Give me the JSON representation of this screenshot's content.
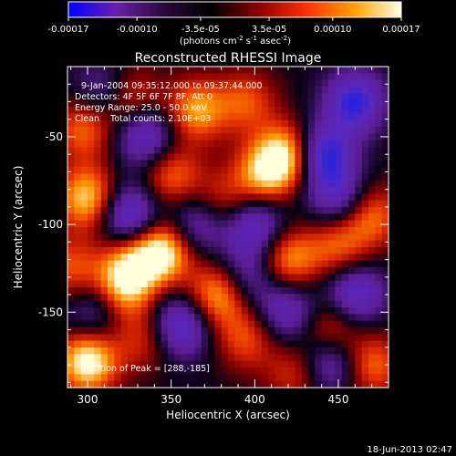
{
  "colorbar": {
    "tick_labels": [
      "-0.00017",
      "-0.00010",
      "-3.5e-05",
      "3.5e-05",
      "0.00010",
      "0.00017"
    ],
    "tick_values": [
      -0.00017,
      -0.0001,
      -3.5e-05,
      3.5e-05,
      0.0001,
      0.00017
    ],
    "range": [
      -0.00017,
      0.00017
    ],
    "units_label": "(photons cm",
    "units_sup1": "-2",
    "units_mid": " s",
    "units_sup2": "-1",
    "units_tail": " asec",
    "units_sup3": "-2",
    "units_close": ")",
    "colors": [
      "#0000ff",
      "#6a1fb0",
      "#2a0a3a",
      "#000000",
      "#8a0000",
      "#ff3000",
      "#ffa000",
      "#ffffe0"
    ]
  },
  "chart_data": {
    "type": "heatmap",
    "title": "Reconstructed RHESSI Image",
    "xlabel": "Heliocentric X (arcsec)",
    "ylabel": "Heliocentric Y (arcsec)",
    "xlim": [
      288,
      480
    ],
    "ylim": [
      -193,
      -10
    ],
    "xticks": [
      300,
      350,
      400,
      450
    ],
    "yticks": [
      -50,
      -100,
      -150
    ],
    "info_lines": [
      "9-Jan-2004 09:35:12.000 to 09:37:44.000",
      "Detectors: 4F 5F 6F 7F 8F, Att 0",
      "Energy Range: 25.0 - 50.0 keV",
      "Clean    Total counts: 2.10E+03"
    ],
    "peak_label": "Position of Peak = [288,-185]",
    "peak_position": [
      288,
      -185
    ],
    "blobs": [
      {
        "x": 298,
        "y": -45,
        "v": 0.6
      },
      {
        "x": 325,
        "y": -28,
        "v": 0.55
      },
      {
        "x": 365,
        "y": -35,
        "v": 0.7
      },
      {
        "x": 395,
        "y": -30,
        "v": 0.5
      },
      {
        "x": 420,
        "y": -60,
        "v": 0.9
      },
      {
        "x": 405,
        "y": -72,
        "v": 0.7
      },
      {
        "x": 300,
        "y": -85,
        "v": 0.85
      },
      {
        "x": 350,
        "y": -72,
        "v": 0.6
      },
      {
        "x": 380,
        "y": -88,
        "v": 0.45
      },
      {
        "x": 345,
        "y": -115,
        "v": 1.0
      },
      {
        "x": 325,
        "y": -125,
        "v": 0.7
      },
      {
        "x": 378,
        "y": -140,
        "v": 0.8
      },
      {
        "x": 420,
        "y": -120,
        "v": 0.7
      },
      {
        "x": 450,
        "y": -112,
        "v": 0.55
      },
      {
        "x": 470,
        "y": -95,
        "v": 0.6
      },
      {
        "x": 395,
        "y": -165,
        "v": 0.5
      },
      {
        "x": 445,
        "y": -160,
        "v": 0.6
      },
      {
        "x": 470,
        "y": -180,
        "v": 0.6
      },
      {
        "x": 300,
        "y": -178,
        "v": 1.0
      },
      {
        "x": 335,
        "y": -165,
        "v": 0.45
      },
      {
        "x": 425,
        "y": -185,
        "v": 0.45
      },
      {
        "x": 320,
        "y": -140,
        "v": 0.55
      },
      {
        "x": 290,
        "y": -125,
        "v": 0.5
      },
      {
        "x": 335,
        "y": -50,
        "v": -0.7
      },
      {
        "x": 325,
        "y": -95,
        "v": -0.8
      },
      {
        "x": 365,
        "y": -100,
        "v": -0.6
      },
      {
        "x": 400,
        "y": -100,
        "v": -0.7
      },
      {
        "x": 440,
        "y": -60,
        "v": -0.9
      },
      {
        "x": 460,
        "y": -30,
        "v": -0.8
      },
      {
        "x": 450,
        "y": -85,
        "v": -0.6
      },
      {
        "x": 355,
        "y": -158,
        "v": -0.8
      },
      {
        "x": 420,
        "y": -150,
        "v": -0.6
      },
      {
        "x": 460,
        "y": -140,
        "v": -0.7
      },
      {
        "x": 305,
        "y": -150,
        "v": -0.5
      },
      {
        "x": 445,
        "y": -178,
        "v": -0.7
      },
      {
        "x": 395,
        "y": -130,
        "v": -0.5
      },
      {
        "x": 310,
        "y": -25,
        "v": -0.5
      }
    ]
  },
  "footer": {
    "timestamp": "18-Jun-2013 02:47"
  }
}
